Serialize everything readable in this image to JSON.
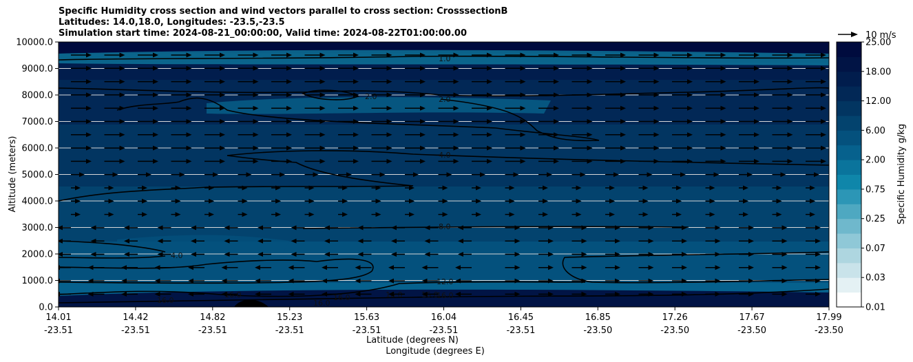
{
  "chart_data": {
    "type": "heatmap",
    "title": [
      "Specific Humidity cross section and wind vectors parallel to cross section: CrosssectionB",
      "Latitudes: 14.0,18.0, Longitudes: -23.5,-23.5",
      "Simulation start time: 2024-08-21_00:00:00, Valid time: 2024-08-22T01:00:00.00"
    ],
    "ylabel": "Altitude (meters)",
    "xlabel_lat": "Latitude (degrees N)",
    "xlabel_lon": "Longitude (degrees E)",
    "ylim": [
      0,
      10000
    ],
    "yticks": [
      "0.0",
      "1000.0",
      "2000.0",
      "3000.0",
      "4000.0",
      "5000.0",
      "6000.0",
      "7000.0",
      "8000.0",
      "9000.0",
      "10000.0"
    ],
    "xticks_lat": [
      "14.01",
      "14.42",
      "14.82",
      "15.23",
      "15.63",
      "16.04",
      "16.45",
      "16.85",
      "17.26",
      "17.67",
      "17.99"
    ],
    "xticks_lon": [
      "-23.51",
      "-23.51",
      "-23.51",
      "-23.51",
      "-23.51",
      "-23.51",
      "-23.51",
      "-23.50",
      "-23.50",
      "-23.50",
      "-23.50"
    ],
    "grid": "horizontal",
    "colorbar": {
      "label": "Specific Humidity g/kg",
      "tick_labels": [
        "0.01",
        "0.03",
        "0.07",
        "0.25",
        "0.75",
        "2.00",
        "6.00",
        "12.00",
        "18.00",
        "25.00"
      ]
    },
    "contour_labels": [
      "1.0",
      "2.0",
      "2.0",
      "4.0",
      "8.0",
      "12.0",
      "16.0",
      "16.0",
      "16.0",
      "16.0",
      "16.0",
      "16.0",
      "16.0",
      "4.0"
    ],
    "quiver_key": "10 m/s",
    "palette": [
      "#ffffff",
      "#e4f1f4",
      "#c9e3ea",
      "#aed6e0",
      "#8fc8d7",
      "#6fb8cc",
      "#4ea8c1",
      "#2c96b6",
      "#0f86aa",
      "#0a749c",
      "#06618d",
      "#04517d",
      "#03436e",
      "#023561",
      "#022856",
      "#011d4d",
      "#011445",
      "#000b3e"
    ]
  }
}
